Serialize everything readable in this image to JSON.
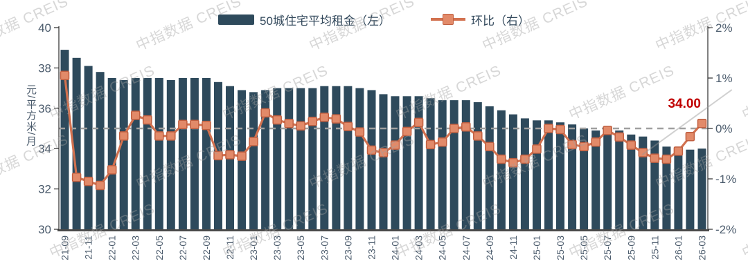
{
  "legend": {
    "bar_label": "50城住宅平均租金（左）",
    "line_label": "环比（右）"
  },
  "y_axis_left": {
    "title": "元/平方米/月",
    "tick_labels": [
      "40",
      "38",
      "36",
      "34",
      "32",
      "30"
    ],
    "min": 30,
    "max": 40
  },
  "y_axis_right": {
    "tick_labels": [
      "2%",
      "1%",
      "0%",
      "-1%",
      "-2%"
    ],
    "min": -2,
    "max": 2
  },
  "annotation": {
    "last_value_label": "34.00",
    "color": "#c00000"
  },
  "watermark": {
    "text": "中指数据 CREIS"
  },
  "colors": {
    "bar": "#2e4a5c",
    "line": "#d2714f",
    "marker_fill": "#e28a69",
    "marker_stroke": "#c05f40",
    "zero_dash": "#a0a0a0",
    "axis_line": "#2b2b2b",
    "baseline": "#4a4a4a",
    "tick_text": "#4c5c6d",
    "legend_text": "#33495c"
  },
  "chart_data": {
    "type": "bar+line combo",
    "categories": [
      "21-09",
      "21-10",
      "21-11",
      "21-12",
      "22-01",
      "22-02",
      "22-03",
      "22-04",
      "22-05",
      "22-06",
      "22-07",
      "22-08",
      "22-09",
      "22-10",
      "22-11",
      "22-12",
      "23-01",
      "23-02",
      "23-03",
      "23-04",
      "23-05",
      "23-06",
      "23-07",
      "23-08",
      "23-09",
      "23-10",
      "23-11",
      "23-12",
      "24-01",
      "24-02",
      "24-03",
      "24-04",
      "24-05",
      "24-06",
      "24-07",
      "24-08",
      "24-09",
      "24-10",
      "24-11",
      "24-12",
      "25-01",
      "25-02",
      "25-03",
      "25-04",
      "25-05",
      "25-06",
      "25-07",
      "25-08",
      "25-09",
      "25-10",
      "25-11",
      "25-12",
      "26-01",
      "26-02",
      "26-03"
    ],
    "x_tick_labels_shown": [
      "21-09",
      "21-11",
      "22-01",
      "22-03",
      "22-05",
      "22-07",
      "22-09",
      "22-11",
      "23-01",
      "23-03",
      "23-05",
      "23-07",
      "23-09",
      "23-11",
      "24-01",
      "24-03",
      "24-05",
      "24-07",
      "24-09",
      "24-11",
      "25-01",
      "25-03",
      "25-05",
      "25-07",
      "25-09",
      "25-11",
      "26-01",
      "26-03"
    ],
    "series": [
      {
        "name": "50城住宅平均租金（左）",
        "type": "bar",
        "axis": "left",
        "unit": "元/平方米/月",
        "values": [
          38.9,
          38.5,
          38.1,
          37.8,
          37.5,
          37.4,
          37.5,
          37.5,
          37.5,
          37.4,
          37.5,
          37.5,
          37.5,
          37.3,
          37.1,
          36.9,
          36.8,
          36.9,
          37.0,
          37.0,
          37.0,
          37.0,
          37.1,
          37.1,
          37.1,
          37.0,
          36.9,
          36.7,
          36.6,
          36.6,
          36.6,
          36.5,
          36.4,
          36.4,
          36.4,
          36.3,
          36.1,
          35.9,
          35.7,
          35.5,
          35.4,
          35.4,
          35.3,
          35.2,
          35.0,
          34.9,
          34.9,
          34.9,
          34.7,
          34.6,
          34.4,
          34.1,
          34.0,
          33.95,
          34.0
        ]
      },
      {
        "name": "环比（右）",
        "type": "line",
        "axis": "right",
        "unit": "%",
        "values": [
          1.05,
          -0.97,
          -1.05,
          -1.13,
          -0.82,
          -0.15,
          0.26,
          0.17,
          -0.15,
          -0.15,
          0.08,
          0.08,
          0.06,
          -0.54,
          -0.52,
          -0.55,
          -0.26,
          0.31,
          0.17,
          0.1,
          0.05,
          0.14,
          0.22,
          0.19,
          0.04,
          -0.07,
          -0.43,
          -0.48,
          -0.33,
          -0.06,
          0.12,
          -0.32,
          -0.27,
          0.0,
          0.03,
          -0.15,
          -0.36,
          -0.61,
          -0.68,
          -0.61,
          -0.41,
          0.0,
          -0.02,
          -0.32,
          -0.36,
          -0.27,
          -0.04,
          -0.17,
          -0.33,
          -0.48,
          -0.59,
          -0.61,
          -0.45,
          -0.16,
          0.1
        ]
      }
    ],
    "left_ylim": [
      30,
      40
    ],
    "right_ylim": [
      -2,
      2
    ],
    "zero_line": "dashed gray at 0% (right axis)",
    "grid": "off",
    "legend_position": "top-center",
    "last_point_label": "34.00"
  }
}
